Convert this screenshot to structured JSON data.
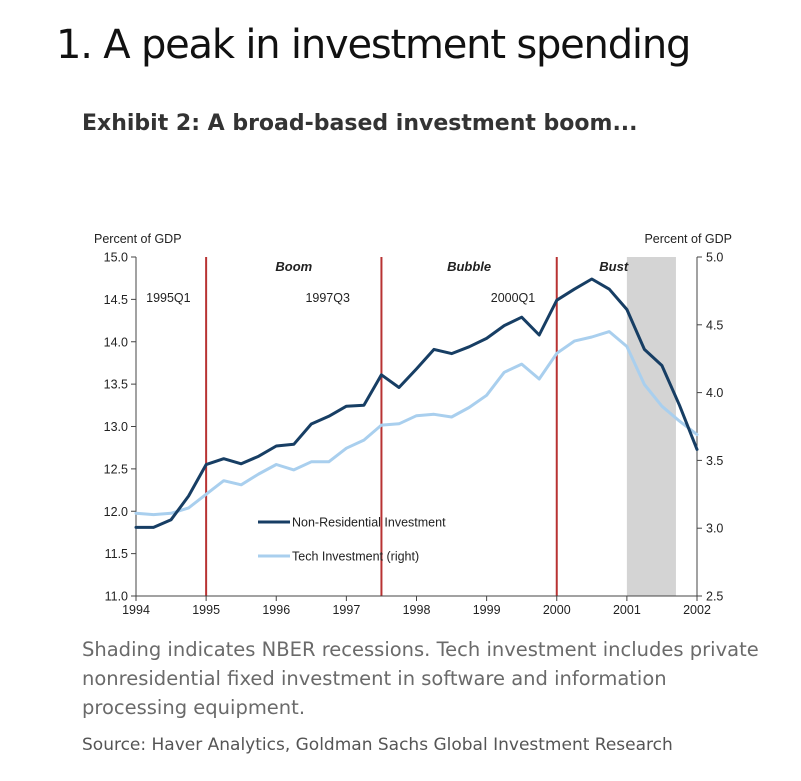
{
  "page": {
    "heading": "1. A peak in investment spending",
    "exhibit_title": "Exhibit 2: A broad-based investment boom...",
    "caption": "Shading indicates NBER recessions. Tech investment includes private nonresidential fixed investment in software and information processing equipment.",
    "source": "Source: Haver Analytics, Goldman Sachs Global Investment Research"
  },
  "colors": {
    "series_non_res": "#173e64",
    "series_tech": "#a9cfee",
    "event_line": "#b83232",
    "recession_shade": "#d4d4d4"
  },
  "chart_data": {
    "type": "line",
    "ylabel_left": "Percent of GDP",
    "ylabel_right": "Percent of GDP",
    "xlim": [
      1994,
      2002
    ],
    "ylim_left": [
      11.0,
      15.0
    ],
    "ylim_right": [
      2.5,
      5.0
    ],
    "x_ticks": [
      "1994",
      "1995",
      "1996",
      "1997",
      "1998",
      "1999",
      "2000",
      "2001",
      "2002"
    ],
    "y_ticks_left": [
      "11.0",
      "11.5",
      "12.0",
      "12.5",
      "13.0",
      "13.5",
      "14.0",
      "14.5",
      "15.0"
    ],
    "y_ticks_right": [
      "2.5",
      "3.0",
      "3.5",
      "4.0",
      "4.5",
      "5.0"
    ],
    "grid": false,
    "legend_position": "lower-center",
    "series": [
      {
        "name": "Non-Residential Investment",
        "axis": "left",
        "x": [
          1994,
          1994.25,
          1994.5,
          1994.75,
          1995,
          1995.25,
          1995.5,
          1995.75,
          1996,
          1996.25,
          1996.5,
          1996.75,
          1997,
          1997.25,
          1997.5,
          1997.75,
          1998,
          1998.25,
          1998.5,
          1998.75,
          1999,
          1999.25,
          1999.5,
          1999.75,
          2000,
          2000.25,
          2000.5,
          2000.75,
          2001,
          2001.25,
          2001.5,
          2001.75,
          2002
        ],
        "values": [
          11.81,
          11.81,
          11.9,
          12.18,
          12.55,
          12.62,
          12.56,
          12.65,
          12.77,
          12.79,
          13.03,
          13.12,
          13.24,
          13.25,
          13.61,
          13.46,
          13.68,
          13.91,
          13.86,
          13.94,
          14.04,
          14.19,
          14.29,
          14.08,
          14.49,
          14.62,
          14.74,
          14.62,
          14.38,
          13.91,
          13.72,
          13.25,
          12.73
        ]
      },
      {
        "name": "Tech Investment (right)",
        "axis": "right",
        "x": [
          1994,
          1994.25,
          1994.5,
          1994.75,
          1995,
          1995.25,
          1995.5,
          1995.75,
          1996,
          1996.25,
          1996.5,
          1996.75,
          1997,
          1997.25,
          1997.5,
          1997.75,
          1998,
          1998.25,
          1998.5,
          1998.75,
          1999,
          1999.25,
          1999.5,
          1999.75,
          2000,
          2000.25,
          2000.5,
          2000.75,
          2001,
          2001.25,
          2001.5,
          2001.75,
          2002
        ],
        "values": [
          3.11,
          3.1,
          3.11,
          3.15,
          3.25,
          3.35,
          3.32,
          3.4,
          3.47,
          3.43,
          3.49,
          3.49,
          3.59,
          3.65,
          3.76,
          3.77,
          3.83,
          3.84,
          3.82,
          3.89,
          3.98,
          4.15,
          4.21,
          4.1,
          4.29,
          4.38,
          4.41,
          4.45,
          4.34,
          4.06,
          3.9,
          3.79,
          3.69
        ]
      }
    ],
    "event_lines": [
      {
        "x": 1995.0,
        "label": "1995Q1",
        "period": "Boom"
      },
      {
        "x": 1997.5,
        "label": "1997Q3",
        "period": "Bubble"
      },
      {
        "x": 2000.0,
        "label": "2000Q1",
        "period": "Bust"
      }
    ],
    "recession_shading": [
      [
        2001.0,
        2001.7
      ]
    ]
  }
}
